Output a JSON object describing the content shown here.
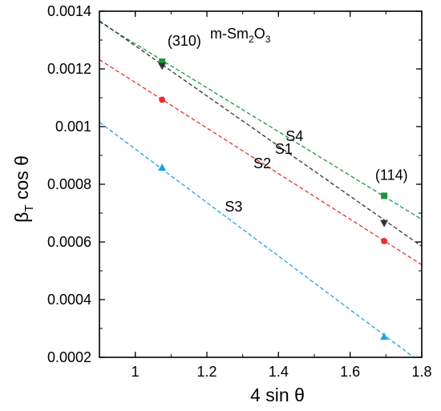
{
  "chart_data": {
    "type": "scatter",
    "title": "m-Sm2O3",
    "title_parts": {
      "base": "m-Sm",
      "sub1": "2",
      "mid": "O",
      "sub2": "3"
    },
    "xlabel": "4 sin θ",
    "ylabel": "β",
    "ylabel_sub": "T",
    "ylabel_tail": " cos θ",
    "xlim": [
      0.9,
      1.8
    ],
    "ylim": [
      0.0002,
      0.0014
    ],
    "xticks": [
      "1",
      "1.2",
      "1.4",
      "1.6",
      "1.8"
    ],
    "xtick_values": [
      1.0,
      1.2,
      1.4,
      1.6,
      1.8
    ],
    "yticks": [
      "0.0002",
      "0.0004",
      "0.0006",
      "0.0008",
      "0.001",
      "0.0012",
      "0.0014"
    ],
    "ytick_values": [
      0.0002,
      0.0004,
      0.0006,
      0.0008,
      0.001,
      0.0012,
      0.0014
    ],
    "grid": false,
    "series": [
      {
        "name": "S4",
        "color": "#1a9641",
        "marker": "square",
        "x": [
          1.075,
          1.695
        ],
        "y": [
          0.001225,
          0.00076
        ],
        "fit": {
          "x": [
            0.9,
            1.8
          ],
          "y": [
            0.001363,
            0.000678
          ]
        }
      },
      {
        "name": "S1",
        "color": "#333333",
        "marker": "triangle-down",
        "x": [
          1.075,
          1.695
        ],
        "y": [
          0.00121,
          0.000665
        ],
        "fit": {
          "x": [
            0.9,
            1.8
          ],
          "y": [
            0.001367,
            0.000585
          ]
        }
      },
      {
        "name": "S2",
        "color": "#e8312f",
        "marker": "circle",
        "x": [
          1.075,
          1.695
        ],
        "y": [
          0.001093,
          0.000603
        ],
        "fit": {
          "x": [
            0.9,
            1.8
          ],
          "y": [
            0.001232,
            0.000521
          ]
        }
      },
      {
        "name": "S3",
        "color": "#1ea0e6",
        "marker": "triangle-up",
        "x": [
          1.075,
          1.695
        ],
        "y": [
          0.000858,
          0.000272
        ],
        "fit": {
          "x": [
            0.9,
            1.778
          ],
          "y": [
            0.001015,
            0.0002
          ]
        }
      }
    ],
    "annotations": [
      {
        "text": "(310)",
        "x": 1.09,
        "y": 0.00128
      },
      {
        "text": "(114)",
        "x": 1.67,
        "y": 0.000815
      },
      {
        "text": "S4",
        "x": 1.42,
        "y": 0.00095
      },
      {
        "text": "S1",
        "x": 1.39,
        "y": 0.000905
      },
      {
        "text": "S2",
        "x": 1.33,
        "y": 0.000855
      },
      {
        "text": "S3",
        "x": 1.25,
        "y": 0.000705
      }
    ]
  }
}
